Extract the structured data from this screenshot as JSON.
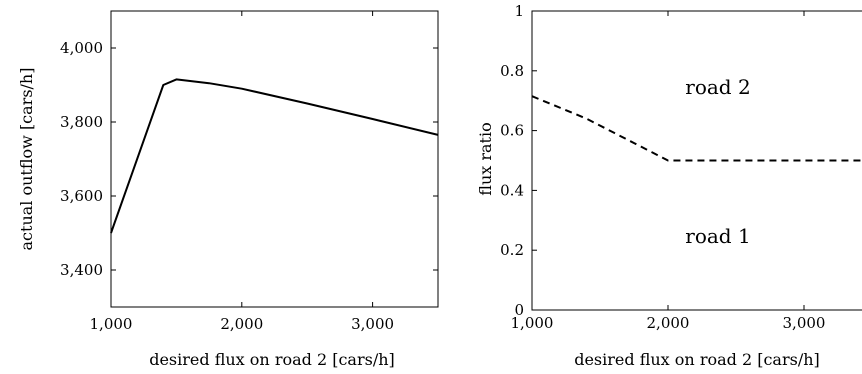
{
  "chart_data": [
    {
      "type": "line",
      "xlabel": "desired flux on road 2 [cars/h]",
      "ylabel": "actual outflow [cars/h]",
      "xlim": [
        1000,
        3500
      ],
      "ylim": [
        3300,
        4100
      ],
      "xticks": [
        1000,
        2000,
        3000
      ],
      "xtick_labels": [
        "1,000",
        "2,000",
        "3,000"
      ],
      "yticks": [
        3400,
        3600,
        3800,
        4000
      ],
      "ytick_labels": [
        "3,400",
        "3,600",
        "3,800",
        "4,000"
      ],
      "grid": false,
      "series": [
        {
          "style": "solid",
          "x": [
            1000,
            1400,
            1500,
            1750,
            2000,
            2500,
            3000,
            3500
          ],
          "y": [
            3500,
            3900,
            3915,
            3905,
            3890,
            3850,
            3808,
            3765
          ]
        }
      ]
    },
    {
      "type": "line",
      "xlabel": "desired flux on road 2 [cars/h]",
      "ylabel": "flux ratio",
      "xlim": [
        1000,
        3500
      ],
      "ylim": [
        0,
        1
      ],
      "xticks": [
        1000,
        2000,
        3000
      ],
      "xtick_labels": [
        "1,000",
        "2,000",
        "3,000"
      ],
      "yticks": [
        0,
        0.2,
        0.4,
        0.6,
        0.8,
        1
      ],
      "ytick_labels": [
        "0",
        "0.2",
        "0.4",
        "0.6",
        "0.8",
        "1"
      ],
      "grid": false,
      "annotations": [
        "road 2",
        "road 1"
      ],
      "series": [
        {
          "style": "dashed",
          "x": [
            1000,
            1400,
            2000,
            3500
          ],
          "y": [
            0.715,
            0.64,
            0.5,
            0.5
          ]
        }
      ]
    }
  ]
}
